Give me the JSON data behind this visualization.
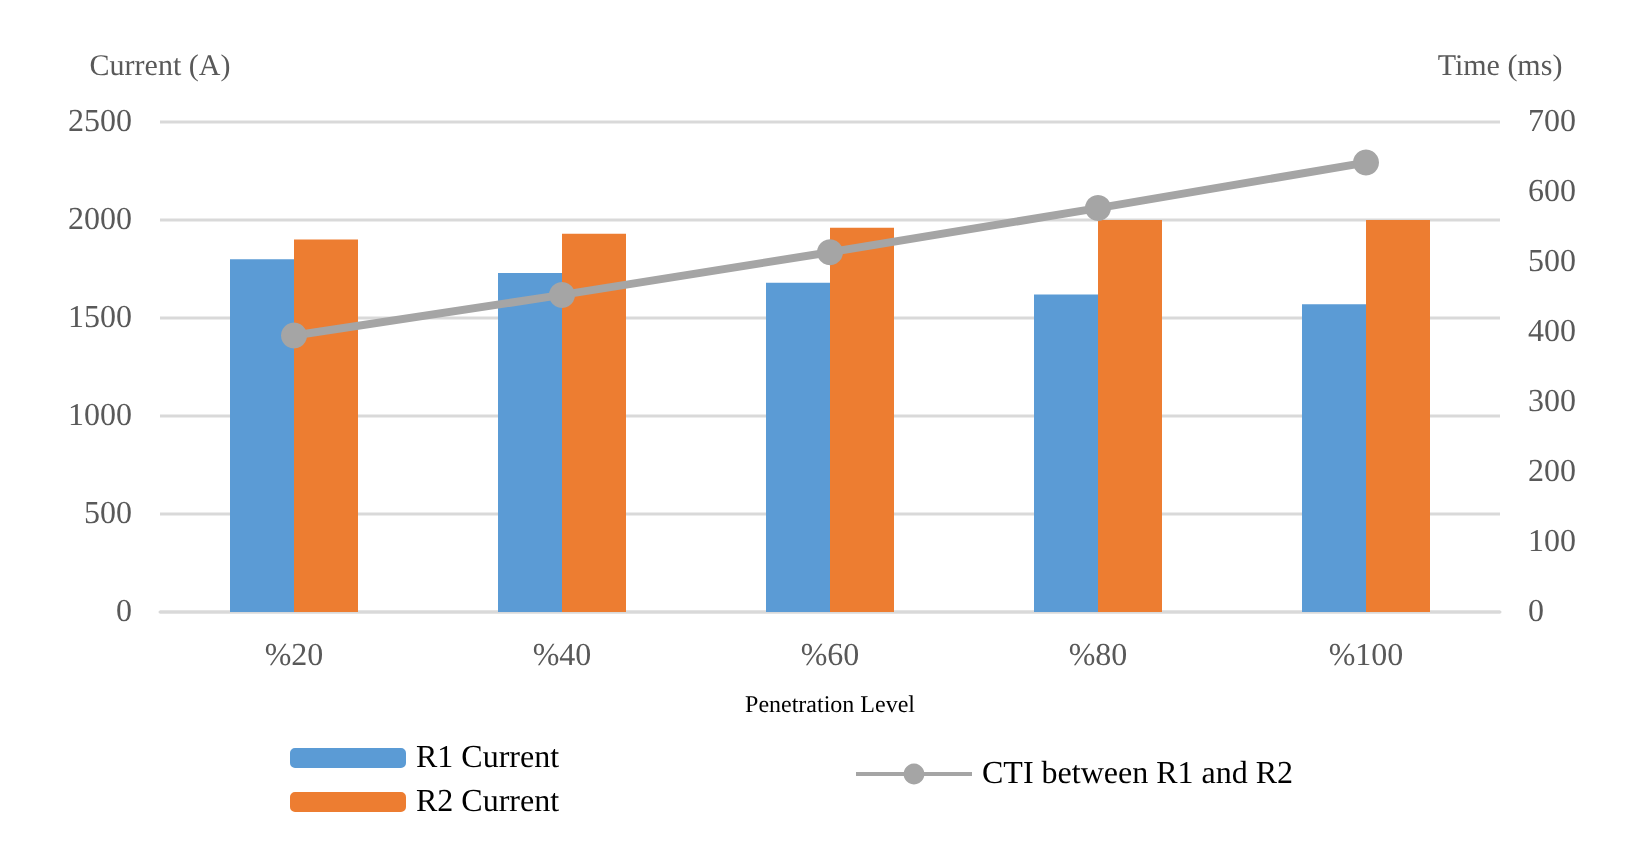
{
  "chart_data": {
    "type": "bar",
    "xlabel": "Penetration Level",
    "ylabel": "Current (A)",
    "y2label": "Time (ms)",
    "categories": [
      "%20",
      "%40",
      "%60",
      "%80",
      "%100"
    ],
    "series": [
      {
        "name": "R1 Current",
        "color": "#5b9bd5",
        "values": [
          1800,
          1730,
          1680,
          1620,
          1570
        ]
      },
      {
        "name": "R2 Current",
        "color": "#ed7d31",
        "values": [
          1900,
          1930,
          1960,
          2000,
          2000
        ]
      },
      {
        "name": "CTI between R1 and R2",
        "type": "line",
        "axis": "y2",
        "color": "#a5a5a5",
        "values": [
          395,
          453,
          514,
          577,
          642
        ]
      }
    ],
    "ylim": [
      0,
      2500
    ],
    "yticks": [
      0,
      500,
      1000,
      1500,
      2000,
      2500
    ],
    "y2lim": [
      0,
      700
    ],
    "y2ticks": [
      0,
      100,
      200,
      300,
      400,
      500,
      600,
      700
    ],
    "grid": "y",
    "legend": "bottom",
    "marker": "circle"
  }
}
